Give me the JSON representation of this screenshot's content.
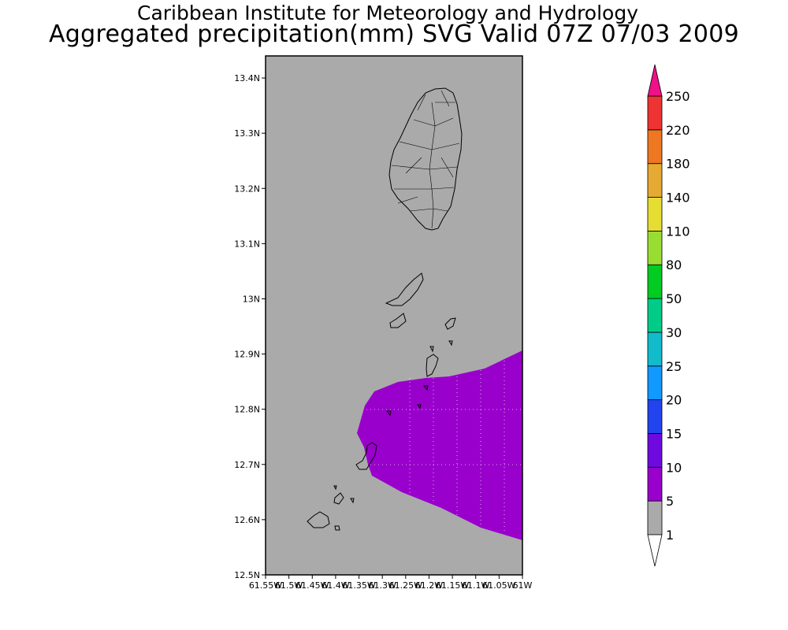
{
  "title": {
    "line1": "Caribbean Institute for Meteorology and Hydrology",
    "line2": "Aggregated precipitation(mm) SVG Valid 07Z 07/03 2009"
  },
  "map": {
    "lat_range": [
      12.5,
      13.44
    ],
    "lon_range": [
      -61.55,
      -61.0
    ],
    "background_color": "#aaaaaa",
    "lat_ticks": [
      "12.5N",
      "12.6N",
      "12.7N",
      "12.8N",
      "12.9N",
      "13N",
      "13.1N",
      "13.2N",
      "13.3N",
      "13.4N"
    ],
    "lon_ticks": [
      "61.55W",
      "61.5W",
      "61.45W",
      "61.4W",
      "61.35W",
      "61.3W",
      "61.25W",
      "61.2W",
      "61.15W",
      "61.1W",
      "61.05W",
      "61W"
    ],
    "rain_area_color": "#9900cc",
    "rain_area_class": "5-10"
  },
  "legend": {
    "labels": [
      "1",
      "5",
      "10",
      "15",
      "20",
      "25",
      "30",
      "50",
      "80",
      "110",
      "140",
      "180",
      "220",
      "250"
    ],
    "colors": [
      "#aaaaaa",
      "#9900cc",
      "#6e0ae0",
      "#2244ee",
      "#1199ff",
      "#11bbcc",
      "#00cc88",
      "#00cc22",
      "#99dd33",
      "#e6dd33",
      "#e6aa33",
      "#ee7722",
      "#ee3333",
      "#ee1188"
    ],
    "bottom_arrow_color": "#ffffff",
    "top_arrow_color": "#ee1188"
  }
}
